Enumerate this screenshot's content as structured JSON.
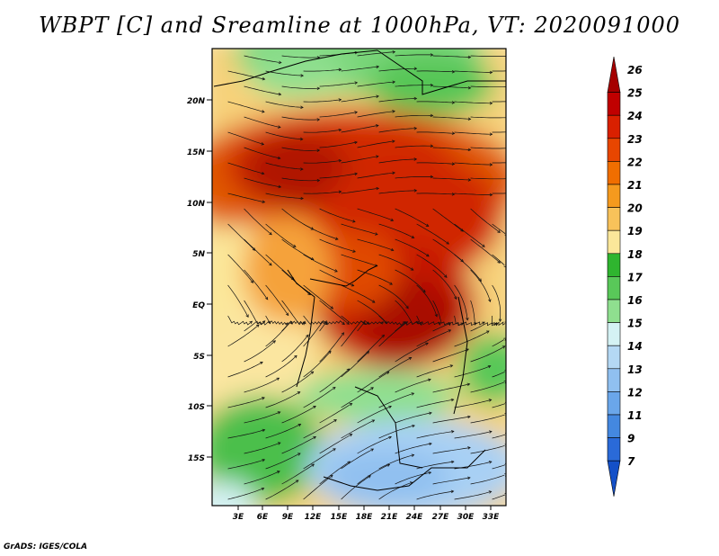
{
  "title": "WBPT [C] and Sreamline at 1000hPa, VT: 2020091000",
  "footer": "GrADS: IGES/COLA",
  "map": {
    "lat_ticks": [
      "20N",
      "15N",
      "10N",
      "5N",
      "EQ",
      "5S",
      "10S",
      "15S"
    ],
    "lon_ticks": [
      "3E",
      "6E",
      "9E",
      "12E",
      "15E",
      "18E",
      "21E",
      "24E",
      "27E",
      "30E",
      "33E"
    ]
  },
  "colorbar": {
    "labels": [
      "26",
      "25",
      "24",
      "23",
      "22",
      "21",
      "20",
      "19",
      "18",
      "17",
      "16",
      "15",
      "14",
      "13",
      "12",
      "11",
      "9",
      "7"
    ],
    "colors": [
      "#a50000",
      "#c00000",
      "#d92000",
      "#e84600",
      "#f06e00",
      "#f59a1e",
      "#f8c25a",
      "#fbe79a",
      "#2fb52f",
      "#59c859",
      "#8fdf8f",
      "#d4f2f4",
      "#b4d8f4",
      "#90c0f0",
      "#6aa6ea",
      "#4488e0",
      "#2a6ad8",
      "#1450c8"
    ]
  }
}
